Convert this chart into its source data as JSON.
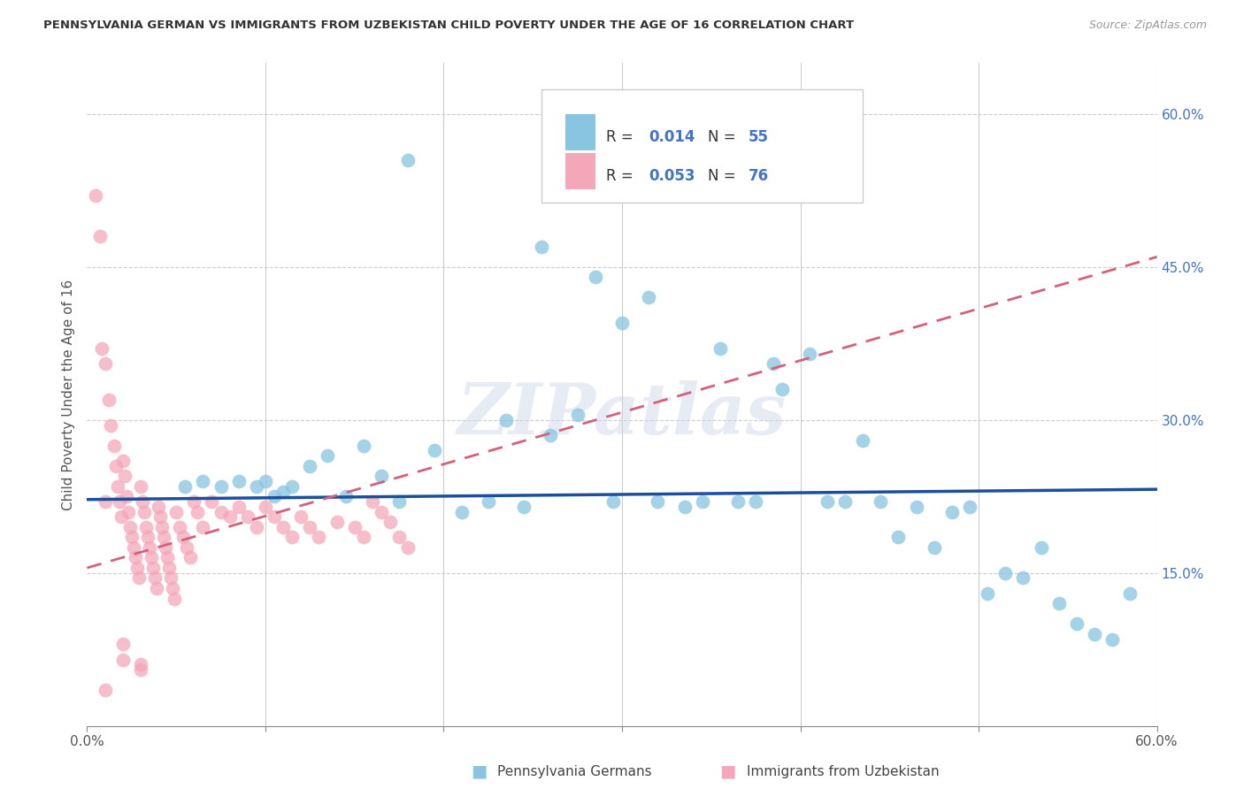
{
  "title": "PENNSYLVANIA GERMAN VS IMMIGRANTS FROM UZBEKISTAN CHILD POVERTY UNDER THE AGE OF 16 CORRELATION CHART",
  "source": "Source: ZipAtlas.com",
  "ylabel": "Child Poverty Under the Age of 16",
  "xlim": [
    0,
    0.6
  ],
  "ylim": [
    0,
    0.65
  ],
  "legend_labels": [
    "Pennsylvania Germans",
    "Immigrants from Uzbekistan"
  ],
  "blue_color": "#89C4E1",
  "pink_color": "#F4A7B9",
  "blue_line_color": "#1B4F9C",
  "pink_line_color": "#D4607A",
  "grid_color": "#cccccc",
  "watermark": "ZIPatlas",
  "blue_scatter_x": [
    0.18,
    0.255,
    0.285,
    0.3,
    0.315,
    0.355,
    0.385,
    0.405,
    0.435,
    0.055,
    0.065,
    0.075,
    0.085,
    0.095,
    0.1,
    0.105,
    0.11,
    0.115,
    0.125,
    0.135,
    0.145,
    0.155,
    0.165,
    0.175,
    0.195,
    0.21,
    0.225,
    0.235,
    0.245,
    0.26,
    0.275,
    0.295,
    0.32,
    0.335,
    0.345,
    0.365,
    0.375,
    0.39,
    0.415,
    0.425,
    0.445,
    0.455,
    0.465,
    0.475,
    0.485,
    0.495,
    0.505,
    0.515,
    0.525,
    0.535,
    0.545,
    0.555,
    0.565,
    0.575,
    0.585
  ],
  "blue_scatter_y": [
    0.555,
    0.47,
    0.44,
    0.395,
    0.42,
    0.37,
    0.355,
    0.365,
    0.28,
    0.235,
    0.24,
    0.235,
    0.24,
    0.235,
    0.24,
    0.225,
    0.23,
    0.235,
    0.255,
    0.265,
    0.225,
    0.275,
    0.245,
    0.22,
    0.27,
    0.21,
    0.22,
    0.3,
    0.215,
    0.285,
    0.305,
    0.22,
    0.22,
    0.215,
    0.22,
    0.22,
    0.22,
    0.33,
    0.22,
    0.22,
    0.22,
    0.185,
    0.215,
    0.175,
    0.21,
    0.215,
    0.13,
    0.15,
    0.145,
    0.175,
    0.12,
    0.1,
    0.09,
    0.085,
    0.13
  ],
  "pink_scatter_x": [
    0.005,
    0.007,
    0.008,
    0.01,
    0.012,
    0.013,
    0.015,
    0.016,
    0.017,
    0.018,
    0.019,
    0.02,
    0.021,
    0.022,
    0.023,
    0.024,
    0.025,
    0.026,
    0.027,
    0.028,
    0.029,
    0.03,
    0.031,
    0.032,
    0.033,
    0.034,
    0.035,
    0.036,
    0.037,
    0.038,
    0.039,
    0.04,
    0.041,
    0.042,
    0.043,
    0.044,
    0.045,
    0.046,
    0.047,
    0.048,
    0.049,
    0.05,
    0.052,
    0.054,
    0.056,
    0.058,
    0.06,
    0.062,
    0.065,
    0.07,
    0.075,
    0.08,
    0.085,
    0.09,
    0.095,
    0.1,
    0.105,
    0.11,
    0.115,
    0.12,
    0.125,
    0.13,
    0.14,
    0.15,
    0.155,
    0.16,
    0.165,
    0.17,
    0.175,
    0.18,
    0.01,
    0.01,
    0.02,
    0.02,
    0.03,
    0.03
  ],
  "pink_scatter_y": [
    0.52,
    0.48,
    0.37,
    0.355,
    0.32,
    0.295,
    0.275,
    0.255,
    0.235,
    0.22,
    0.205,
    0.26,
    0.245,
    0.225,
    0.21,
    0.195,
    0.185,
    0.175,
    0.165,
    0.155,
    0.145,
    0.235,
    0.22,
    0.21,
    0.195,
    0.185,
    0.175,
    0.165,
    0.155,
    0.145,
    0.135,
    0.215,
    0.205,
    0.195,
    0.185,
    0.175,
    0.165,
    0.155,
    0.145,
    0.135,
    0.125,
    0.21,
    0.195,
    0.185,
    0.175,
    0.165,
    0.22,
    0.21,
    0.195,
    0.22,
    0.21,
    0.205,
    0.215,
    0.205,
    0.195,
    0.215,
    0.205,
    0.195,
    0.185,
    0.205,
    0.195,
    0.185,
    0.2,
    0.195,
    0.185,
    0.22,
    0.21,
    0.2,
    0.185,
    0.175,
    0.22,
    0.035,
    0.08,
    0.065,
    0.06,
    0.055
  ],
  "blue_line_y0": 0.222,
  "blue_line_y1": 0.232,
  "pink_line_y0": 0.155,
  "pink_line_y1": 0.46
}
